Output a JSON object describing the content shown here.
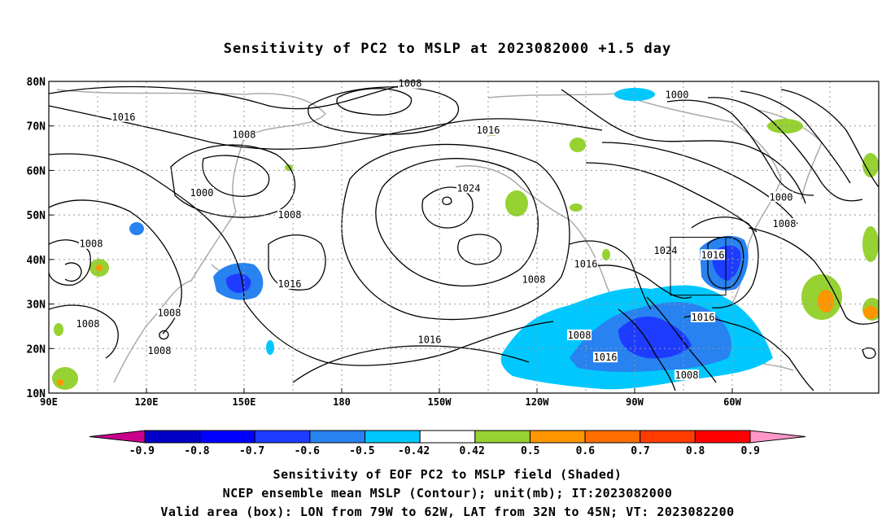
{
  "title": "Sensitivity of PC2 to MSLP at 2023082000 +1.5 day",
  "captions": [
    "Sensitivity of EOF PC2 to MSLP field (Shaded)",
    "NCEP ensemble mean MSLP (Contour); unit(mb); IT:2023082000",
    "Valid area (box): LON from 79W to 62W, LAT from 32N to 45N; VT: 2023082200"
  ],
  "map": {
    "lon_range": [
      90,
      345
    ],
    "lat_range": [
      10,
      80
    ],
    "lon_ticks": [
      {
        "lon": 90,
        "label": "90E"
      },
      {
        "lon": 120,
        "label": "120E"
      },
      {
        "lon": 150,
        "label": "150E"
      },
      {
        "lon": 180,
        "label": "180"
      },
      {
        "lon": 210,
        "label": "150W"
      },
      {
        "lon": 240,
        "label": "120W"
      },
      {
        "lon": 270,
        "label": "90W"
      },
      {
        "lon": 300,
        "label": "60W"
      }
    ],
    "lat_ticks": [
      {
        "lat": 10,
        "label": "10N"
      },
      {
        "lat": 20,
        "label": "20N"
      },
      {
        "lat": 30,
        "label": "30N"
      },
      {
        "lat": 40,
        "label": "40N"
      },
      {
        "lat": 50,
        "label": "50N"
      },
      {
        "lat": 60,
        "label": "60N"
      },
      {
        "lat": 70,
        "label": "70N"
      },
      {
        "lat": 80,
        "label": "80N"
      }
    ],
    "grid": true,
    "valid_box": {
      "lon": [
        281,
        298
      ],
      "lat": [
        32,
        45
      ]
    },
    "contour_labels": [
      {
        "text": "1008",
        "lon": 201,
        "lat": 79.5
      },
      {
        "text": "1000",
        "lon": 283,
        "lat": 77
      },
      {
        "text": "1016",
        "lon": 113,
        "lat": 72
      },
      {
        "text": "1008",
        "lon": 150,
        "lat": 68
      },
      {
        "text": "1016",
        "lon": 225,
        "lat": 69
      },
      {
        "text": "1000",
        "lon": 137,
        "lat": 55
      },
      {
        "text": "1024",
        "lon": 219,
        "lat": 56
      },
      {
        "text": "1000",
        "lon": 315,
        "lat": 54
      },
      {
        "text": "1008",
        "lon": 164,
        "lat": 50
      },
      {
        "text": "1008",
        "lon": 316,
        "lat": 48
      },
      {
        "text": "1008",
        "lon": 103,
        "lat": 43.5
      },
      {
        "text": "1024",
        "lon": 279.5,
        "lat": 42
      },
      {
        "text": "1016",
        "lon": 294,
        "lat": 41
      },
      {
        "text": "1016",
        "lon": 255,
        "lat": 39
      },
      {
        "text": "1016",
        "lon": 164,
        "lat": 34.5
      },
      {
        "text": "1008",
        "lon": 239,
        "lat": 35.5
      },
      {
        "text": "1008",
        "lon": 127,
        "lat": 28
      },
      {
        "text": "1008",
        "lon": 102,
        "lat": 25.5
      },
      {
        "text": "1016",
        "lon": 291,
        "lat": 27
      },
      {
        "text": "1008",
        "lon": 253,
        "lat": 23
      },
      {
        "text": "1016",
        "lon": 207,
        "lat": 22
      },
      {
        "text": "1016",
        "lon": 261,
        "lat": 18
      },
      {
        "text": "1008",
        "lon": 124,
        "lat": 19.5
      },
      {
        "text": "1008",
        "lon": 286,
        "lat": 14
      }
    ]
  },
  "colorbar": {
    "segments": [
      {
        "color": "#0000c8"
      },
      {
        "color": "#0000ff"
      },
      {
        "color": "#1e3cff"
      },
      {
        "color": "#2882f0"
      },
      {
        "color": "#00c8ff"
      },
      {
        "color": "#ffffff"
      },
      {
        "color": "#96d232"
      },
      {
        "color": "#ff9600"
      },
      {
        "color": "#ff6e00"
      },
      {
        "color": "#ff3c00"
      },
      {
        "color": "#ff0000"
      }
    ],
    "low_end_color": "#c8008c",
    "high_end_color": "#ff96c8",
    "tick_labels": [
      "-0.9",
      "-0.8",
      "-0.7",
      "-0.6",
      "-0.5",
      "-0.42",
      "0.42",
      "0.5",
      "0.6",
      "0.7",
      "0.8",
      "0.9"
    ]
  }
}
